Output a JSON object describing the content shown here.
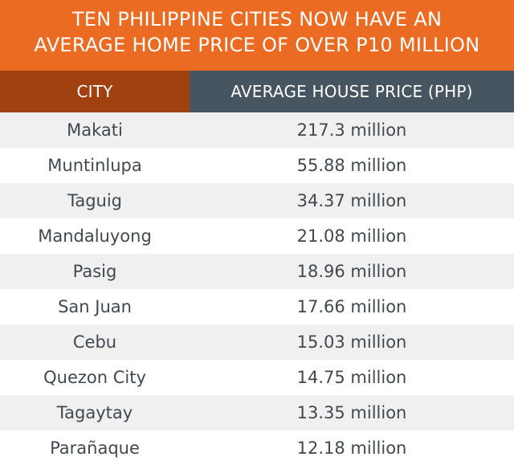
{
  "title": {
    "line1": "TEN PHILIPPINE CITIES NOW HAVE AN",
    "line2": "AVERAGE HOME PRICE OF OVER P10 MILLION"
  },
  "colors": {
    "title_bg": "#ec6b22",
    "city_header_bg": "#a0410f",
    "price_header_bg": "#465560",
    "row_alt_bg": "#f0f0f0",
    "text": "#404850"
  },
  "table": {
    "headers": {
      "city": "CITY",
      "price": "AVERAGE HOUSE PRICE (PHP)"
    },
    "rows": [
      {
        "city": "Makati",
        "price": "217.3 million"
      },
      {
        "city": "Muntinlupa",
        "price": "55.88 million"
      },
      {
        "city": "Taguig",
        "price": "34.37 million"
      },
      {
        "city": "Mandaluyong",
        "price": "21.08 million"
      },
      {
        "city": "Pasig",
        "price": "18.96 million"
      },
      {
        "city": "San Juan",
        "price": "17.66 million"
      },
      {
        "city": "Cebu",
        "price": "15.03 million"
      },
      {
        "city": "Quezon City",
        "price": "14.75 million"
      },
      {
        "city": "Tagaytay",
        "price": "13.35 million"
      },
      {
        "city": "Parañaque",
        "price": "12.18 million"
      }
    ]
  }
}
